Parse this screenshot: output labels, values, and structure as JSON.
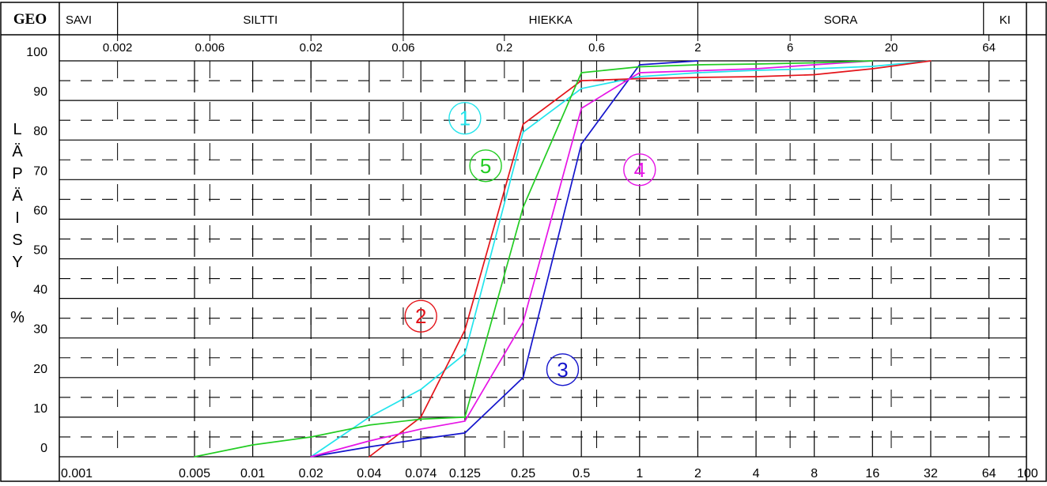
{
  "chart_data": {
    "type": "line",
    "title": "",
    "top_header": {
      "corner_label": "GEO",
      "fractions": [
        "SAVI",
        "SILTTI",
        "HIEKKA",
        "SORA",
        "KI"
      ]
    },
    "top_scale": [
      "0.002",
      "0.006",
      "0.02",
      "0.06",
      "0.2",
      "0.6",
      "2",
      "6",
      "20",
      "64"
    ],
    "xlabel": "",
    "ylabel": "LÄPÄISY %",
    "ylabel_letters": [
      "L",
      "Ä",
      "P",
      "Ä",
      "I",
      "S",
      "Y"
    ],
    "ylabel_unit": "%",
    "x_scale": "log",
    "xlim": [
      0.001,
      100
    ],
    "x_tick_labels": [
      "0.001",
      "0.005",
      "0.01",
      "0.02",
      "0.04",
      "0.074",
      "0.125",
      "0.25",
      "0.5",
      "1",
      "2",
      "4",
      "8",
      "16",
      "32",
      "64",
      "100"
    ],
    "ylim": [
      0,
      100
    ],
    "y_tick_labels": [
      "0",
      "10",
      "20",
      "30",
      "40",
      "50",
      "60",
      "70",
      "80",
      "90",
      "100"
    ],
    "grid": true,
    "colors": {
      "frame": "#000000",
      "series_1": "#22e4ec",
      "series_2": "#e4141a",
      "series_3": "#1414cc",
      "series_4": "#e614e6",
      "series_5": "#22cc22"
    },
    "series": [
      {
        "name": "1",
        "color": "#22e4ec",
        "x": [
          0.02,
          0.04,
          0.074,
          0.125,
          0.25,
          0.5,
          1,
          2,
          4,
          8,
          16,
          32
        ],
        "y": [
          0,
          10,
          17,
          26,
          82,
          93,
          96,
          97,
          97.6,
          98,
          98.6,
          100
        ]
      },
      {
        "name": "2",
        "color": "#e4141a",
        "x": [
          0.04,
          0.074,
          0.125,
          0.25,
          0.5,
          1,
          2,
          4,
          8,
          16,
          32
        ],
        "y": [
          0,
          10,
          32,
          84,
          95,
          95.5,
          95.8,
          96,
          96.5,
          98,
          100
        ]
      },
      {
        "name": "3",
        "color": "#1414cc",
        "x": [
          0.02,
          0.04,
          0.074,
          0.125,
          0.25,
          0.5,
          1,
          2
        ],
        "y": [
          0,
          2.5,
          4.5,
          6,
          20,
          79,
          99,
          100
        ]
      },
      {
        "name": "4",
        "color": "#e614e6",
        "x": [
          0.02,
          0.04,
          0.074,
          0.125,
          0.25,
          0.5,
          1,
          2,
          4,
          8,
          16
        ],
        "y": [
          0,
          4,
          7,
          9,
          34,
          88,
          97,
          97.5,
          98,
          99,
          100
        ]
      },
      {
        "name": "5",
        "color": "#22cc22",
        "x": [
          0.005,
          0.01,
          0.02,
          0.04,
          0.074,
          0.125,
          0.25,
          0.5,
          1,
          2,
          4,
          8,
          16
        ],
        "y": [
          0,
          3,
          5,
          8,
          9.5,
          10,
          63,
          97,
          98.5,
          99,
          99.2,
          99.5,
          100
        ]
      }
    ],
    "annotations": [
      {
        "text": "1",
        "x": 0.125,
        "y": 85.5,
        "color": "#22e4ec"
      },
      {
        "text": "5",
        "x": 0.16,
        "y": 73.5,
        "color": "#22cc22"
      },
      {
        "text": "4",
        "x": 1.0,
        "y": 72.5,
        "color": "#e614e6"
      },
      {
        "text": "2",
        "x": 0.074,
        "y": 35.5,
        "color": "#e4141a"
      },
      {
        "text": "3",
        "x": 0.4,
        "y": 22,
        "color": "#1414cc"
      }
    ]
  }
}
